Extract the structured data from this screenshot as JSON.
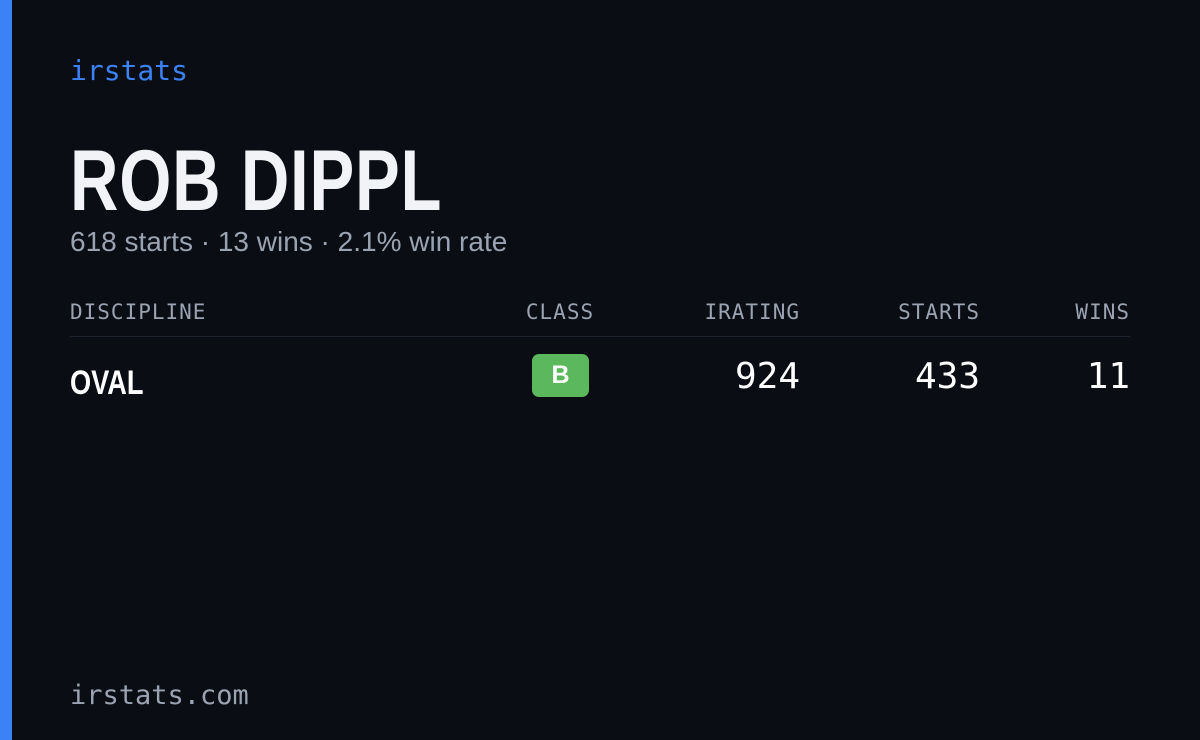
{
  "brand": "irstats",
  "driver": {
    "name": "ROB DIPPL",
    "summary": "618 starts · 13 wins · 2.1% win rate"
  },
  "table": {
    "headers": [
      "DISCIPLINE",
      "CLASS",
      "IRATING",
      "STARTS",
      "WINS"
    ],
    "rows": [
      [
        "OVAL",
        "B",
        "924",
        "433",
        "11"
      ]
    ]
  },
  "footer": "irstats.com"
}
